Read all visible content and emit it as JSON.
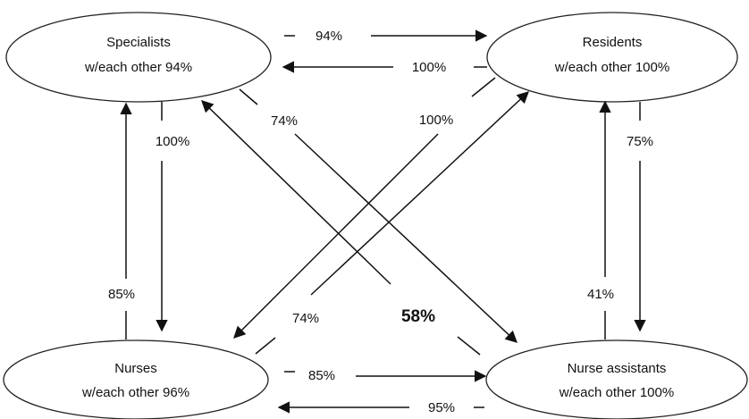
{
  "nodes": {
    "specialists": {
      "title": "Specialists",
      "subtitle": "w/each other 94%"
    },
    "residents": {
      "title": "Residents",
      "subtitle": "w/each other 100%"
    },
    "nurses": {
      "title": "Nurses",
      "subtitle": "w/each other 96%"
    },
    "nurse_assistants": {
      "title": "Nurse assistants",
      "subtitle": "w/each other 100%"
    }
  },
  "edges": {
    "specialists_to_residents": "94%",
    "residents_to_specialists": "100%",
    "specialists_to_nurses": "100%",
    "nurses_to_specialists": "85%",
    "specialists_to_nurse_assistants": "74%",
    "nurse_assistants_to_specialists": "58%",
    "residents_to_nurses": "100%",
    "nurses_to_residents": "74%",
    "residents_to_nurse_assistants": "75%",
    "nurse_assistants_to_residents": "41%",
    "nurses_to_nurse_assistants": "85%",
    "nurse_assistants_to_nurses": "95%"
  }
}
